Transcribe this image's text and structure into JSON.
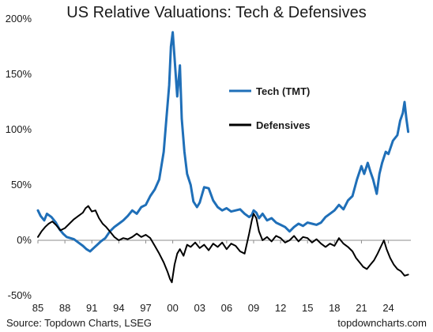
{
  "chart_data": {
    "type": "line",
    "title": "US Relative Valuations: Tech & Defensives",
    "xlabel": "",
    "ylabel": "",
    "xlim": [
      1985,
      2026.5
    ],
    "ylim": [
      -50,
      200
    ],
    "x_tick_labels": [
      "85",
      "88",
      "91",
      "94",
      "97",
      "00",
      "03",
      "06",
      "09",
      "12",
      "15",
      "18",
      "21",
      "24"
    ],
    "x_tick_years": [
      1985,
      1988,
      1991,
      1994,
      1997,
      2000,
      2003,
      2006,
      2009,
      2012,
      2015,
      2018,
      2021,
      2024
    ],
    "y_ticks": [
      -50,
      0,
      50,
      100,
      150,
      200
    ],
    "y_tick_labels": [
      "-50%",
      "0%",
      "50%",
      "100%",
      "150%",
      "200%"
    ],
    "legend_position": "upper-middle",
    "grid": false,
    "source": "Source: Topdown Charts, LSEG",
    "watermark": "topdowncharts.com",
    "series": [
      {
        "name": "Tech (TMT)",
        "color": "#1f6fb8",
        "points": [
          [
            1985.0,
            27
          ],
          [
            1985.3,
            22
          ],
          [
            1985.7,
            18
          ],
          [
            1986.0,
            24
          ],
          [
            1986.5,
            21
          ],
          [
            1987.0,
            16
          ],
          [
            1987.4,
            10
          ],
          [
            1987.8,
            6
          ],
          [
            1988.2,
            3
          ],
          [
            1988.6,
            2
          ],
          [
            1989.0,
            1
          ],
          [
            1989.5,
            -2
          ],
          [
            1990.0,
            -5
          ],
          [
            1990.4,
            -8
          ],
          [
            1990.8,
            -10
          ],
          [
            1991.2,
            -7
          ],
          [
            1991.6,
            -4
          ],
          [
            1992.0,
            -1
          ],
          [
            1992.5,
            2
          ],
          [
            1993.0,
            8
          ],
          [
            1993.5,
            12
          ],
          [
            1994.0,
            15
          ],
          [
            1994.5,
            18
          ],
          [
            1995.0,
            22
          ],
          [
            1995.5,
            27
          ],
          [
            1996.0,
            24
          ],
          [
            1996.5,
            30
          ],
          [
            1997.0,
            32
          ],
          [
            1997.5,
            40
          ],
          [
            1998.0,
            46
          ],
          [
            1998.5,
            55
          ],
          [
            1999.0,
            80
          ],
          [
            1999.3,
            110
          ],
          [
            1999.6,
            140
          ],
          [
            1999.8,
            175
          ],
          [
            2000.0,
            188
          ],
          [
            2000.2,
            165
          ],
          [
            2000.5,
            130
          ],
          [
            2000.8,
            158
          ],
          [
            2001.0,
            110
          ],
          [
            2001.3,
            80
          ],
          [
            2001.6,
            60
          ],
          [
            2002.0,
            50
          ],
          [
            2002.3,
            35
          ],
          [
            2002.7,
            30
          ],
          [
            2003.0,
            34
          ],
          [
            2003.5,
            48
          ],
          [
            2004.0,
            47
          ],
          [
            2004.5,
            36
          ],
          [
            2005.0,
            30
          ],
          [
            2005.5,
            27
          ],
          [
            2006.0,
            29
          ],
          [
            2006.5,
            26
          ],
          [
            2007.0,
            27
          ],
          [
            2007.5,
            28
          ],
          [
            2008.0,
            24
          ],
          [
            2008.5,
            21
          ],
          [
            2008.8,
            23
          ],
          [
            2009.0,
            27
          ],
          [
            2009.3,
            25
          ],
          [
            2009.6,
            20
          ],
          [
            2010.0,
            24
          ],
          [
            2010.5,
            18
          ],
          [
            2011.0,
            20
          ],
          [
            2011.5,
            16
          ],
          [
            2012.0,
            14
          ],
          [
            2012.5,
            12
          ],
          [
            2013.0,
            8
          ],
          [
            2013.5,
            12
          ],
          [
            2014.0,
            15
          ],
          [
            2014.5,
            13
          ],
          [
            2015.0,
            16
          ],
          [
            2015.5,
            15
          ],
          [
            2016.0,
            14
          ],
          [
            2016.5,
            16
          ],
          [
            2017.0,
            21
          ],
          [
            2017.5,
            24
          ],
          [
            2018.0,
            27
          ],
          [
            2018.5,
            32
          ],
          [
            2019.0,
            28
          ],
          [
            2019.5,
            36
          ],
          [
            2020.0,
            40
          ],
          [
            2020.5,
            55
          ],
          [
            2021.0,
            67
          ],
          [
            2021.3,
            60
          ],
          [
            2021.7,
            70
          ],
          [
            2022.0,
            62
          ],
          [
            2022.3,
            55
          ],
          [
            2022.7,
            42
          ],
          [
            2023.0,
            60
          ],
          [
            2023.3,
            70
          ],
          [
            2023.7,
            80
          ],
          [
            2024.0,
            78
          ],
          [
            2024.5,
            90
          ],
          [
            2025.0,
            95
          ],
          [
            2025.3,
            108
          ],
          [
            2025.6,
            115
          ],
          [
            2025.8,
            125
          ],
          [
            2026.0,
            110
          ],
          [
            2026.2,
            98
          ]
        ]
      },
      {
        "name": "Defensives",
        "color": "#000000",
        "points": [
          [
            1985.0,
            3
          ],
          [
            1985.4,
            8
          ],
          [
            1985.8,
            12
          ],
          [
            1986.2,
            15
          ],
          [
            1986.6,
            17
          ],
          [
            1987.0,
            14
          ],
          [
            1987.5,
            9
          ],
          [
            1988.0,
            11
          ],
          [
            1988.5,
            15
          ],
          [
            1989.0,
            19
          ],
          [
            1989.5,
            22
          ],
          [
            1990.0,
            25
          ],
          [
            1990.3,
            29
          ],
          [
            1990.6,
            31
          ],
          [
            1991.0,
            26
          ],
          [
            1991.4,
            27
          ],
          [
            1991.8,
            20
          ],
          [
            1992.2,
            15
          ],
          [
            1992.6,
            12
          ],
          [
            1993.0,
            8
          ],
          [
            1993.5,
            3
          ],
          [
            1994.0,
            0
          ],
          [
            1994.5,
            2
          ],
          [
            1995.0,
            1
          ],
          [
            1995.5,
            3
          ],
          [
            1996.0,
            6
          ],
          [
            1996.5,
            3
          ],
          [
            1997.0,
            5
          ],
          [
            1997.5,
            2
          ],
          [
            1998.0,
            -5
          ],
          [
            1998.5,
            -12
          ],
          [
            1999.0,
            -20
          ],
          [
            1999.4,
            -28
          ],
          [
            1999.7,
            -35
          ],
          [
            1999.9,
            -38
          ],
          [
            2000.2,
            -22
          ],
          [
            2000.5,
            -12
          ],
          [
            2000.8,
            -8
          ],
          [
            2001.2,
            -14
          ],
          [
            2001.6,
            -4
          ],
          [
            2002.0,
            -6
          ],
          [
            2002.5,
            -2
          ],
          [
            2003.0,
            -7
          ],
          [
            2003.5,
            -4
          ],
          [
            2004.0,
            -9
          ],
          [
            2004.5,
            -3
          ],
          [
            2005.0,
            -6
          ],
          [
            2005.5,
            -2
          ],
          [
            2006.0,
            -8
          ],
          [
            2006.5,
            -3
          ],
          [
            2007.0,
            -5
          ],
          [
            2007.5,
            -10
          ],
          [
            2008.0,
            -12
          ],
          [
            2008.5,
            6
          ],
          [
            2008.8,
            18
          ],
          [
            2009.0,
            24
          ],
          [
            2009.3,
            20
          ],
          [
            2009.6,
            8
          ],
          [
            2010.0,
            0
          ],
          [
            2010.5,
            3
          ],
          [
            2011.0,
            -1
          ],
          [
            2011.5,
            4
          ],
          [
            2012.0,
            2
          ],
          [
            2012.5,
            -2
          ],
          [
            2013.0,
            0
          ],
          [
            2013.5,
            4
          ],
          [
            2014.0,
            -1
          ],
          [
            2014.5,
            3
          ],
          [
            2015.0,
            2
          ],
          [
            2015.5,
            -2
          ],
          [
            2016.0,
            1
          ],
          [
            2016.5,
            -3
          ],
          [
            2017.0,
            -6
          ],
          [
            2017.5,
            -3
          ],
          [
            2018.0,
            -5
          ],
          [
            2018.5,
            2
          ],
          [
            2019.0,
            -3
          ],
          [
            2019.5,
            -6
          ],
          [
            2020.0,
            -10
          ],
          [
            2020.4,
            -16
          ],
          [
            2020.8,
            -20
          ],
          [
            2021.2,
            -24
          ],
          [
            2021.6,
            -26
          ],
          [
            2022.0,
            -22
          ],
          [
            2022.4,
            -18
          ],
          [
            2022.8,
            -12
          ],
          [
            2023.2,
            -5
          ],
          [
            2023.5,
            0
          ],
          [
            2023.8,
            -8
          ],
          [
            2024.2,
            -16
          ],
          [
            2024.6,
            -22
          ],
          [
            2025.0,
            -26
          ],
          [
            2025.4,
            -28
          ],
          [
            2025.8,
            -32
          ],
          [
            2026.2,
            -31
          ]
        ]
      }
    ]
  }
}
